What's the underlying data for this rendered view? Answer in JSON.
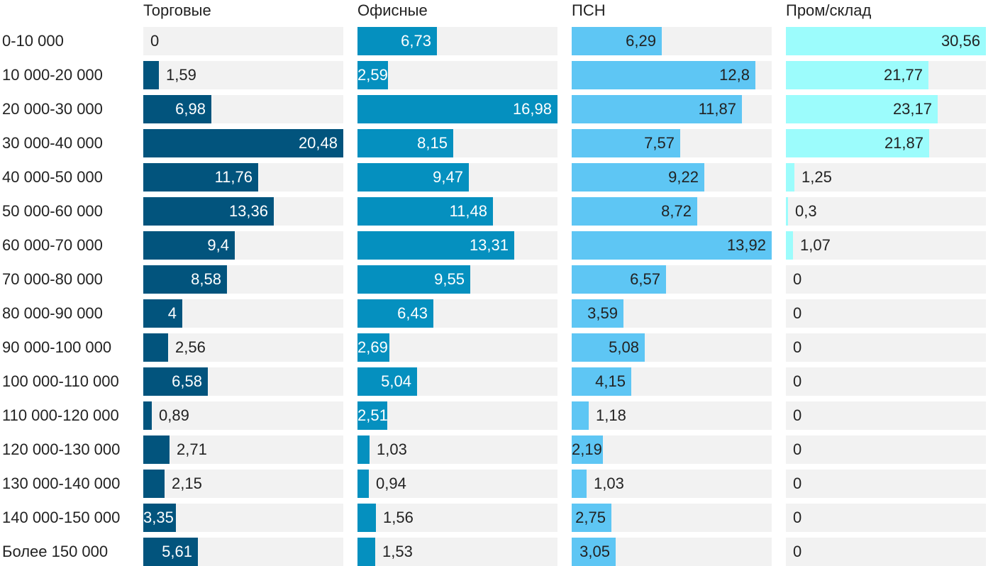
{
  "chart_data": {
    "type": "bar",
    "orientation": "horizontal",
    "layout": "small-multiples",
    "categories": [
      "0-10 000",
      "10 000-20 000",
      "20 000-30 000",
      "30 000-40 000",
      "40 000-50 000",
      "50 000-60 000",
      "60 000-70 000",
      "70 000-80 000",
      "80 000-90 000",
      "90 000-100 000",
      "100 000-110 000",
      "110 000-120 000",
      "120 000-130 000",
      "130 000-140 000",
      "140 000-150 000",
      "Более 150 000"
    ],
    "series": [
      {
        "name": "Торговые",
        "color": "#02547d",
        "label_color_inside": "#ffffff",
        "label_color_outside": "#222222",
        "max": 20.48,
        "values": [
          0,
          1.59,
          6.98,
          20.48,
          11.76,
          13.36,
          9.4,
          8.58,
          4,
          2.56,
          6.58,
          0.89,
          2.71,
          2.15,
          3.35,
          5.61
        ],
        "labels": [
          "0",
          "1,59",
          "6,98",
          "20,48",
          "11,76",
          "13,36",
          "9,4",
          "8,58",
          "4",
          "2,56",
          "6,58",
          "0,89",
          "2,71",
          "2,15",
          "3,35",
          "5,61"
        ]
      },
      {
        "name": "Офисные",
        "color": "#0590bf",
        "label_color_inside": "#ffffff",
        "label_color_outside": "#222222",
        "max": 16.98,
        "values": [
          6.73,
          2.59,
          16.98,
          8.15,
          9.47,
          11.48,
          13.31,
          9.55,
          6.43,
          2.69,
          5.04,
          2.51,
          1.03,
          0.94,
          1.56,
          1.53
        ],
        "labels": [
          "6,73",
          "2,59",
          "16,98",
          "8,15",
          "9,47",
          "11,48",
          "13,31",
          "9,55",
          "6,43",
          "2,69",
          "5,04",
          "2,51",
          "1,03",
          "0,94",
          "1,56",
          "1,53"
        ]
      },
      {
        "name": "ПСН",
        "color": "#5ec6f4",
        "label_color_inside": "#222222",
        "label_color_outside": "#222222",
        "max": 13.92,
        "values": [
          6.29,
          12.8,
          11.87,
          7.57,
          9.22,
          8.72,
          13.92,
          6.57,
          3.59,
          5.08,
          4.15,
          1.18,
          2.19,
          1.03,
          2.75,
          3.05
        ],
        "labels": [
          "6,29",
          "12,8",
          "11,87",
          "7,57",
          "9,22",
          "8,72",
          "13,92",
          "6,57",
          "3,59",
          "5,08",
          "4,15",
          "1,18",
          "2,19",
          "1,03",
          "2,75",
          "3,05"
        ]
      },
      {
        "name": "Пром/склад",
        "color": "#9cfcfc",
        "label_color_inside": "#222222",
        "label_color_outside": "#222222",
        "max": 30.56,
        "values": [
          30.56,
          21.77,
          23.17,
          21.87,
          1.25,
          0.3,
          1.07,
          0,
          0,
          0,
          0,
          0,
          0,
          0,
          0,
          0
        ],
        "labels": [
          "30,56",
          "21,77",
          "23,17",
          "21,87",
          "1,25",
          "0,3",
          "1,07",
          "0",
          "0",
          "0",
          "0",
          "0",
          "0",
          "0",
          "0",
          "0"
        ]
      }
    ],
    "track_color": "#f2f2f2",
    "grid": false,
    "legend": "none"
  }
}
